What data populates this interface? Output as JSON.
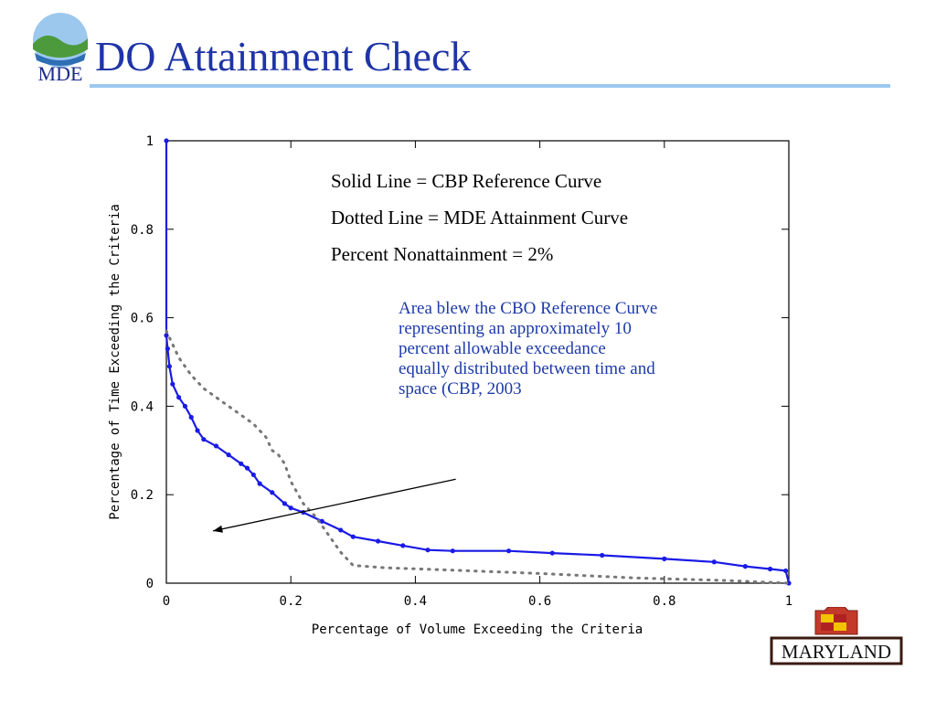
{
  "slide": {
    "title": "DO Attainment Check",
    "logo_text": "MDE",
    "footer_logo_text": "MARYLAND"
  },
  "legend_notes": [
    "Solid Line = CBP Reference Curve",
    "Dotted Line = MDE Attainment Curve",
    "Percent Nonattainment = 2%"
  ],
  "annotation": [
    "Area blew the CBO Reference Curve",
    "representing an approximately 10",
    "percent allowable exceedance",
    "equally distributed between time and",
    "space (CBP, 2003"
  ],
  "chart_data": {
    "type": "line",
    "xlabel": "Percentage of Volume Exceeding the Criteria",
    "ylabel": "Percentage of Time Exceeding the Criteria",
    "xlim": [
      0,
      1
    ],
    "ylim": [
      0,
      1
    ],
    "x_ticks": [
      "0",
      "0.2",
      "0.4",
      "0.6",
      "0.8",
      "1"
    ],
    "y_ticks": [
      "0",
      "0.2",
      "0.4",
      "0.6",
      "0.8",
      "1"
    ],
    "series": [
      {
        "style": "solid",
        "color": "#1a1ae6",
        "points": [
          [
            0.0,
            1.0
          ],
          [
            0.0,
            0.56
          ],
          [
            0.002,
            0.53
          ],
          [
            0.005,
            0.49
          ],
          [
            0.01,
            0.45
          ],
          [
            0.02,
            0.42
          ],
          [
            0.03,
            0.4
          ],
          [
            0.04,
            0.375
          ],
          [
            0.05,
            0.345
          ],
          [
            0.06,
            0.325
          ],
          [
            0.08,
            0.31
          ],
          [
            0.1,
            0.29
          ],
          [
            0.12,
            0.27
          ],
          [
            0.13,
            0.26
          ],
          [
            0.14,
            0.245
          ],
          [
            0.15,
            0.225
          ],
          [
            0.17,
            0.205
          ],
          [
            0.19,
            0.18
          ],
          [
            0.2,
            0.17
          ],
          [
            0.22,
            0.16
          ],
          [
            0.25,
            0.14
          ],
          [
            0.28,
            0.12
          ],
          [
            0.3,
            0.105
          ],
          [
            0.34,
            0.095
          ],
          [
            0.38,
            0.085
          ],
          [
            0.42,
            0.075
          ],
          [
            0.46,
            0.073
          ],
          [
            0.55,
            0.073
          ],
          [
            0.62,
            0.068
          ],
          [
            0.7,
            0.063
          ],
          [
            0.8,
            0.055
          ],
          [
            0.88,
            0.048
          ],
          [
            0.93,
            0.038
          ],
          [
            0.97,
            0.032
          ],
          [
            0.995,
            0.028
          ],
          [
            1.0,
            0.0
          ]
        ]
      },
      {
        "style": "dotted",
        "color": "#777777",
        "points": [
          [
            0.0,
            0.57
          ],
          [
            0.01,
            0.54
          ],
          [
            0.02,
            0.51
          ],
          [
            0.04,
            0.47
          ],
          [
            0.06,
            0.44
          ],
          [
            0.09,
            0.41
          ],
          [
            0.12,
            0.38
          ],
          [
            0.14,
            0.36
          ],
          [
            0.16,
            0.33
          ],
          [
            0.17,
            0.3
          ],
          [
            0.18,
            0.29
          ],
          [
            0.19,
            0.27
          ],
          [
            0.2,
            0.23
          ],
          [
            0.22,
            0.18
          ],
          [
            0.24,
            0.15
          ],
          [
            0.26,
            0.11
          ],
          [
            0.28,
            0.07
          ],
          [
            0.3,
            0.04
          ],
          [
            0.35,
            0.035
          ],
          [
            0.45,
            0.03
          ],
          [
            0.6,
            0.022
          ],
          [
            0.75,
            0.012
          ],
          [
            0.9,
            0.006
          ],
          [
            1.0,
            0.0
          ]
        ]
      }
    ],
    "arrow": {
      "from": [
        0.465,
        0.235
      ],
      "to": [
        0.075,
        0.118
      ]
    },
    "grid": false
  }
}
